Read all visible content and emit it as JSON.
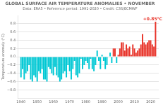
{
  "chart_data": {
    "type": "bar",
    "title": "GLOBAL SURFACE AIR TEMPERATURE ANOMALIES • NOVEMBER",
    "subtitle": "Data: ERA5 • Reference period: 1991-2020 • Credit: C3S/ECMWF",
    "y_label": "Temperature anomaly (°C)",
    "x": [
      1940,
      1941,
      1942,
      1943,
      1944,
      1945,
      1946,
      1947,
      1948,
      1949,
      1950,
      1951,
      1952,
      1953,
      1954,
      1955,
      1956,
      1957,
      1958,
      1959,
      1960,
      1961,
      1962,
      1963,
      1964,
      1965,
      1966,
      1967,
      1968,
      1969,
      1970,
      1971,
      1972,
      1973,
      1974,
      1975,
      1976,
      1977,
      1978,
      1979,
      1980,
      1981,
      1982,
      1983,
      1984,
      1985,
      1986,
      1987,
      1988,
      1989,
      1990,
      1991,
      1992,
      1993,
      1994,
      1995,
      1996,
      1997,
      1998,
      1999,
      2000,
      2001,
      2002,
      2003,
      2004,
      2005,
      2006,
      2007,
      2008,
      2009,
      2010,
      2011,
      2012,
      2013,
      2014,
      2015,
      2016,
      2017,
      2018,
      2019,
      2020,
      2021,
      2022,
      2023
    ],
    "values": [
      -0.5,
      -0.3,
      -0.55,
      -0.4,
      -0.35,
      -0.2,
      -0.55,
      -0.6,
      -0.45,
      -0.5,
      -0.6,
      -0.35,
      -0.4,
      -0.3,
      -0.55,
      -0.55,
      -0.6,
      -0.25,
      -0.3,
      -0.4,
      -0.45,
      -0.25,
      -0.45,
      -0.5,
      -0.6,
      -0.55,
      -0.4,
      -0.35,
      -0.5,
      -0.2,
      -0.35,
      -0.55,
      -0.3,
      -0.1,
      -0.45,
      -0.5,
      -0.4,
      -0.05,
      -0.3,
      -0.2,
      -0.1,
      -0.15,
      -0.3,
      -0.05,
      -0.3,
      -0.35,
      -0.2,
      0.15,
      -0.1,
      -0.3,
      0.05,
      -0.1,
      -0.3,
      -0.2,
      0.0,
      0.1,
      -0.15,
      0.2,
      0.2,
      -0.15,
      0.05,
      0.2,
      0.35,
      0.35,
      0.15,
      0.3,
      0.2,
      0.25,
      0.05,
      0.3,
      0.2,
      0.1,
      0.15,
      0.2,
      0.3,
      0.55,
      0.35,
      0.3,
      0.35,
      0.4,
      0.4,
      0.3,
      0.25,
      0.85
    ],
    "colors": [
      "#00c8d4",
      "#00c8d4",
      "#00c8d4",
      "#00c8d4",
      "#00c8d4",
      "#00c8d4",
      "#00c8d4",
      "#00c8d4",
      "#00c8d4",
      "#00c8d4",
      "#00c8d4",
      "#00c8d4",
      "#00c8d4",
      "#00c8d4",
      "#00c8d4",
      "#00c8d4",
      "#00c8d4",
      "#00c8d4",
      "#00c8d4",
      "#00c8d4",
      "#00c8d4",
      "#00c8d4",
      "#00c8d4",
      "#00c8d4",
      "#00c8d4",
      "#00c8d4",
      "#00c8d4",
      "#00c8d4",
      "#00c8d4",
      "#00c8d4",
      "#00c8d4",
      "#00c8d4",
      "#00c8d4",
      "#00c8d4",
      "#00c8d4",
      "#00c8d4",
      "#00c8d4",
      "#00c8d4",
      "#00c8d4",
      "#00c8d4",
      "#00c8d4",
      "#00c8d4",
      "#00c8d4",
      "#00c8d4",
      "#00c8d4",
      "#00c8d4",
      "#00c8d4",
      "#00c8d4",
      "#00c8d4",
      "#00c8d4",
      "#00c8d4",
      "#00c8d4",
      "#00c8d4",
      "#00c8d4",
      "#00c8d4",
      "#00c8d4",
      "#00c8d4",
      "#e8342a",
      "#e8342a",
      "#00c8d4",
      "#e8342a",
      "#e8342a",
      "#e8342a",
      "#e8342a",
      "#e8342a",
      "#e8342a",
      "#e8342a",
      "#e8342a",
      "#e8342a",
      "#e8342a",
      "#e8342a",
      "#e8342a",
      "#e8342a",
      "#e8342a",
      "#e8342a",
      "#e8342a",
      "#e8342a",
      "#e8342a",
      "#e8342a",
      "#e8342a",
      "#e8342a",
      "#e8342a",
      "#e8342a",
      "#e8342a"
    ],
    "xlim": [
      1938,
      2025
    ],
    "xticks": [
      1940,
      1950,
      1960,
      1970,
      1980,
      1990,
      2000,
      2010,
      2020
    ],
    "ylim": [
      -1.0,
      1.0
    ],
    "yticks": [
      {
        "value": -0.8,
        "label": "−0.8"
      },
      {
        "value": -0.6,
        "label": "−0.6"
      },
      {
        "value": -0.4,
        "label": "−0.4"
      },
      {
        "value": -0.2,
        "label": "−0.2"
      },
      {
        "value": 0.0,
        "label": "0.0"
      },
      0.2,
      0.4,
      0.6,
      0.8
    ],
    "grid": "y",
    "annotations": [
      {
        "text": "+0.85°C",
        "x": 2023,
        "y": 0.85,
        "color": "#e8342a"
      }
    ]
  }
}
